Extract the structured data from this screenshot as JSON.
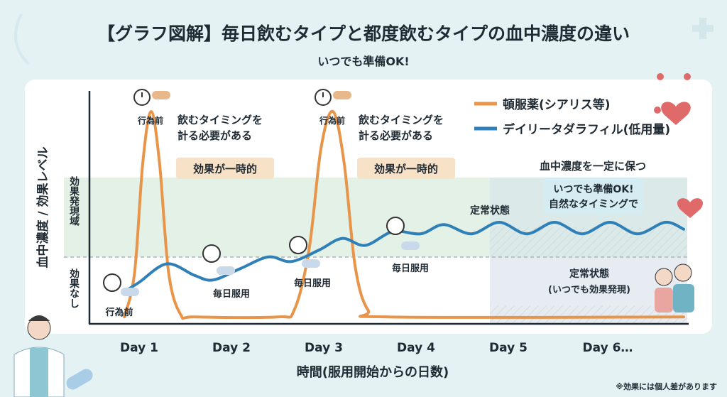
{
  "title": "【グラフ図解】毎日飲むタイプと都度飲むタイプの血中濃度の違い",
  "subtitle": "いつでも準備OK!",
  "footnote": "※効果には個人差があります",
  "colors": {
    "ondemand": "#e8954a",
    "daily": "#2f7fb8",
    "effect_zone": "#e3f1e6",
    "background": "#e4f2f4"
  },
  "bands": {
    "effect": "効果発現域",
    "no_effect": "効果なし"
  },
  "annotations": {
    "before_act_1": "行為前",
    "before_act_2": "行為前",
    "before_act_3": "行為前",
    "timing_1a": "飲むタイミングを",
    "timing_1b": "計る必要がある",
    "timing_2a": "飲むタイミングを",
    "timing_2b": "計る必要がある",
    "temporary_1": "効果が一時的",
    "temporary_2": "効果が一時的",
    "daily_1": "毎日服用",
    "daily_2": "毎日服用",
    "daily_3": "毎日服用",
    "steady_upper": "定常状態",
    "keep_constant": "血中濃度を一定に保つ",
    "bubble_1": "いつでも準備OK!",
    "bubble_2": "自然なタイミングで",
    "steady_lower_1": "定常状態",
    "steady_lower_2": "(いつでも効果発現)"
  },
  "chart_data": {
    "type": "line",
    "title": "【グラフ図解】毎日飲むタイプと都度飲むタイプの血中濃度の違い",
    "xlabel": "時間(服用開始からの日数)",
    "ylabel": "血中濃度 / 効果レベル",
    "x_ticks": [
      "Day 1",
      "Day 2",
      "Day 3",
      "Day 4",
      "Day 5",
      "Day 6…"
    ],
    "xlim": [
      0.3,
      6.9
    ],
    "ylim": [
      0,
      100
    ],
    "effect_threshold": 29,
    "effect_zone": [
      29,
      63
    ],
    "grid": false,
    "legend_position": "top-right",
    "series": [
      {
        "name": "頓服薬(シアリス等)",
        "color": "#e8954a",
        "points": [
          [
            0.84,
            3
          ],
          [
            0.95,
            22
          ],
          [
            1.04,
            70
          ],
          [
            1.13,
            92
          ],
          [
            1.22,
            70
          ],
          [
            1.32,
            22
          ],
          [
            1.45,
            4
          ],
          [
            1.6,
            3
          ],
          [
            2.5,
            3
          ],
          [
            2.68,
            6
          ],
          [
            2.84,
            32
          ],
          [
            2.97,
            76
          ],
          [
            3.1,
            92
          ],
          [
            3.22,
            70
          ],
          [
            3.34,
            25
          ],
          [
            3.48,
            6
          ],
          [
            3.7,
            3
          ],
          [
            6.9,
            3
          ]
        ]
      },
      {
        "name": "デイリータダラフィル(低用量)",
        "color": "#2f7fb8",
        "points": [
          [
            0.84,
            14
          ],
          [
            1.0,
            18
          ],
          [
            1.3,
            26
          ],
          [
            1.6,
            21
          ],
          [
            1.8,
            19
          ],
          [
            2.1,
            24
          ],
          [
            2.4,
            29
          ],
          [
            2.65,
            27
          ],
          [
            2.95,
            32
          ],
          [
            3.2,
            37
          ],
          [
            3.45,
            34
          ],
          [
            3.75,
            40
          ],
          [
            4.05,
            39
          ],
          [
            4.3,
            43
          ],
          [
            4.6,
            39
          ],
          [
            4.9,
            44
          ],
          [
            5.2,
            39
          ],
          [
            5.5,
            44
          ],
          [
            5.8,
            39
          ],
          [
            6.1,
            44
          ],
          [
            6.4,
            39
          ],
          [
            6.7,
            44
          ],
          [
            6.9,
            41
          ]
        ]
      }
    ]
  }
}
